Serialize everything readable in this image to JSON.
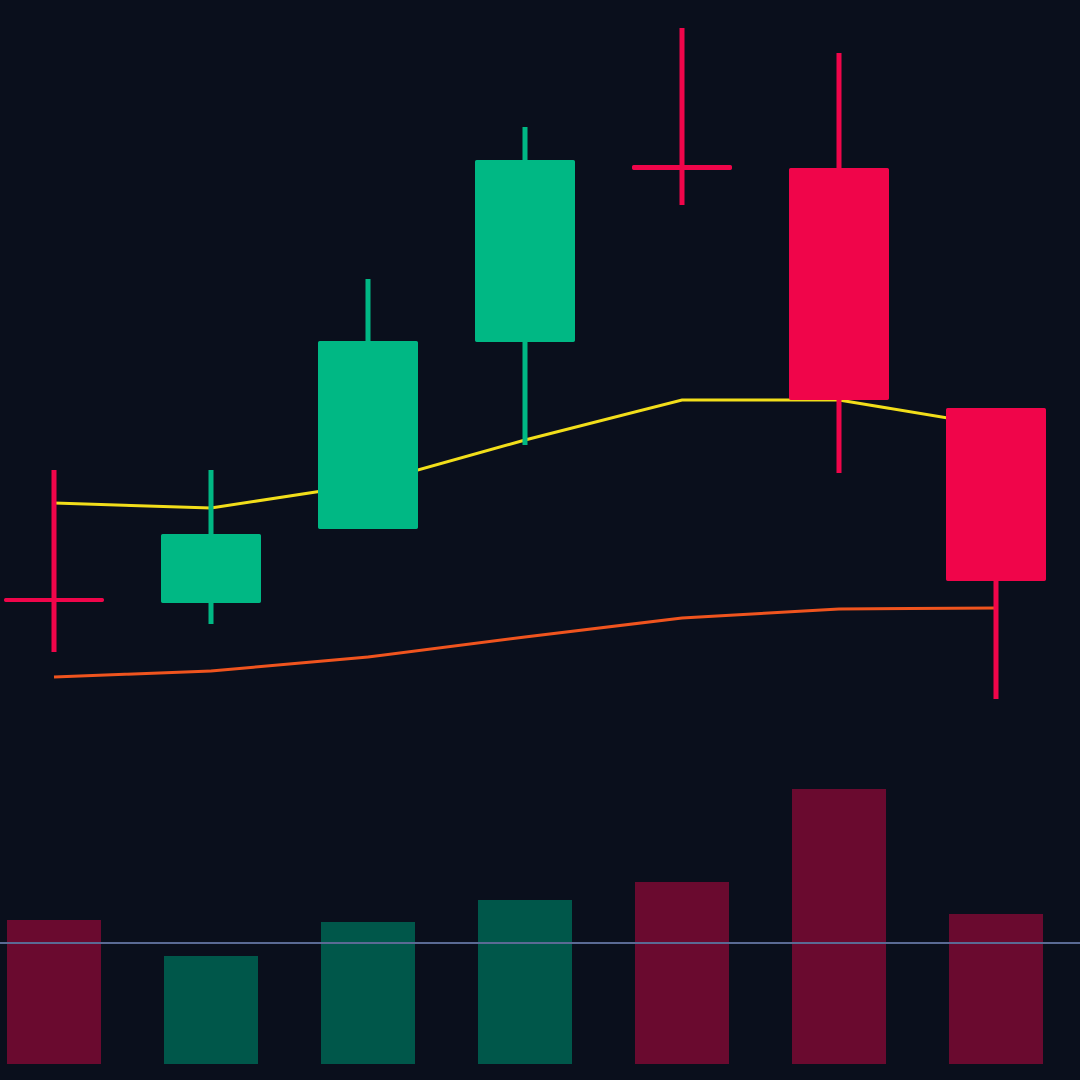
{
  "chart_data": {
    "type": "candlestick",
    "categories": [
      null,
      null,
      null,
      null,
      null,
      null,
      null
    ],
    "open": [
      148.2,
      147.7,
      155.1,
      173.8,
      191.5,
      191.2,
      167.2
    ],
    "high": [
      161,
      161,
      180.1,
      195.3,
      205.2,
      202.7,
      167.2
    ],
    "low": [
      142.8,
      145.6,
      155.1,
      163.5,
      187.5,
      160.7,
      138.1
    ],
    "close": [
      147.8,
      154.6,
      173.9,
      192,
      191,
      168,
      149.9
    ],
    "up_color": "#00b884",
    "down_color": "#f0054a",
    "ylim": [
      100,
      208
    ],
    "lines": [
      {
        "color": "#f2de1a",
        "values": [
          157.7,
          157.2,
          159.6,
          164,
          168,
          168,
          165.4
        ]
      },
      {
        "color": "#f0541e",
        "values": [
          140.3,
          140.9,
          142.3,
          144.3,
          146.2,
          147.1,
          147.2
        ]
      }
    ],
    "volume": [
      144,
      108,
      142,
      164,
      182,
      275,
      150
    ],
    "volume_up_color": "#00574a",
    "volume_down_color": "#6a0a2f",
    "volume_ylim": [
      0,
      300
    ],
    "volume_average": 121,
    "volume_average_color": "#5a6a94"
  }
}
